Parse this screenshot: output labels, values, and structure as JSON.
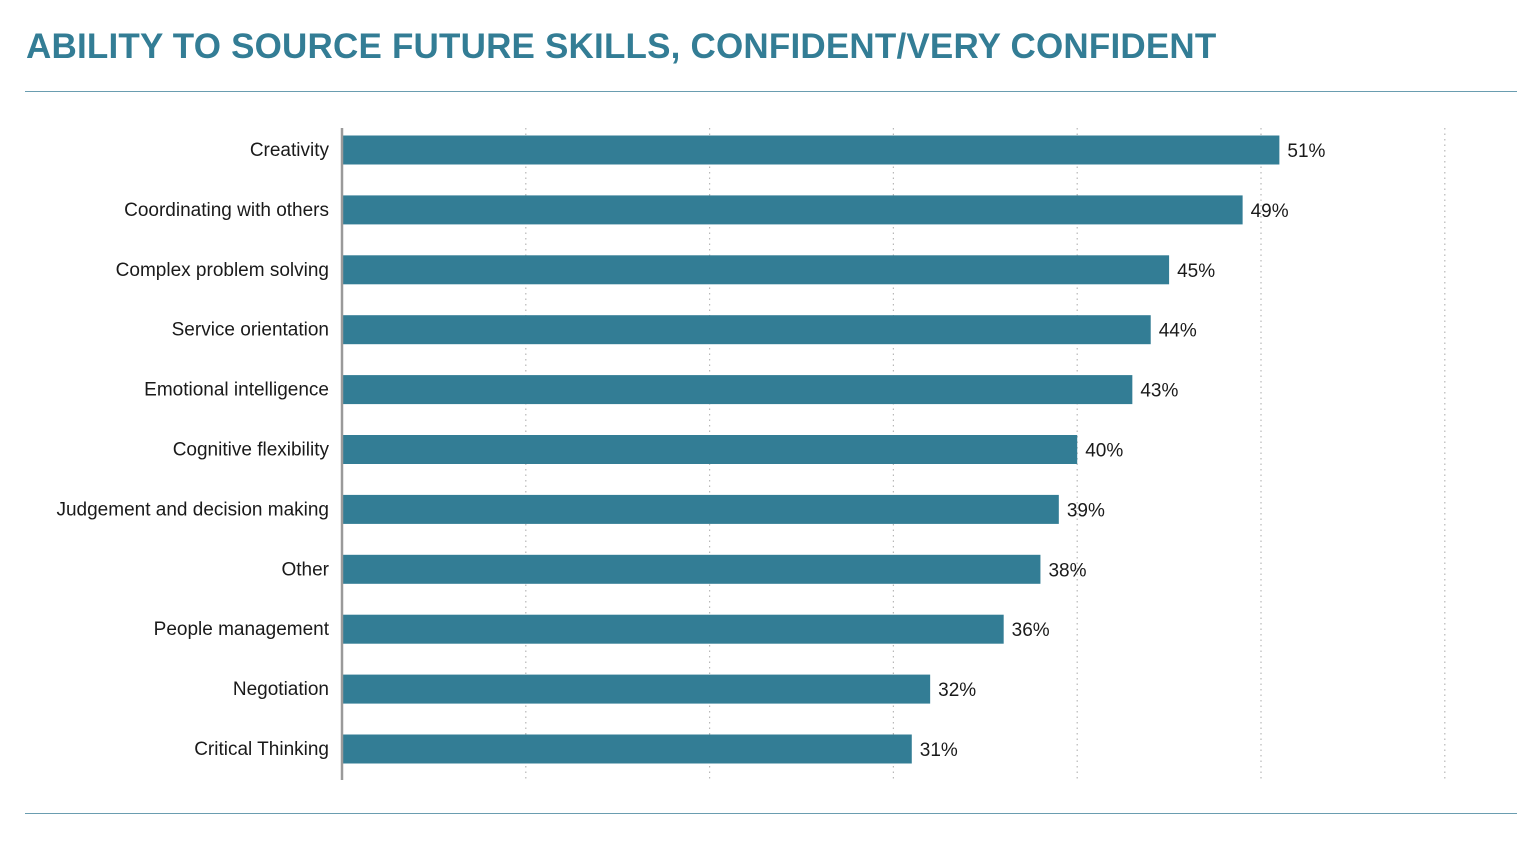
{
  "title": "ABILITY TO SOURCE FUTURE SKILLS, CONFIDENT/VERY CONFIDENT",
  "colors": {
    "title": "#337d95",
    "bar": "#337d95",
    "rule": "#6a9db0",
    "grid": "#b8b8b8",
    "axis": "#9a9a9a"
  },
  "chart_data": {
    "type": "bar",
    "orientation": "horizontal",
    "title": "ABILITY TO SOURCE FUTURE SKILLS, CONFIDENT/VERY CONFIDENT",
    "categories": [
      "Creativity",
      "Coordinating with others",
      "Complex problem solving",
      "Service orientation",
      "Emotional intelligence",
      "Cognitive flexibility",
      "Judgement and decision making",
      "Other",
      "People management",
      "Negotiation",
      "Critical Thinking"
    ],
    "values": [
      51,
      49,
      45,
      44,
      43,
      40,
      39,
      38,
      36,
      32,
      31
    ],
    "value_labels": [
      "51%",
      "49%",
      "45%",
      "44%",
      "43%",
      "40%",
      "39%",
      "38%",
      "36%",
      "32%",
      "31%"
    ],
    "unit": "%",
    "xlim": [
      0,
      60
    ],
    "xticks": [
      0,
      10,
      20,
      30,
      40,
      50,
      60
    ],
    "grid": "vertical dotted",
    "legend": "none"
  }
}
